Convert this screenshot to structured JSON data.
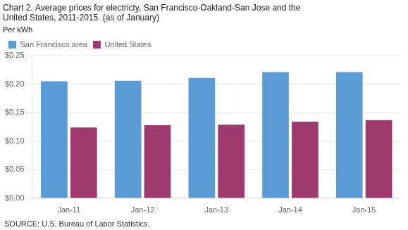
{
  "chart_data": {
    "type": "bar",
    "title": "Chart 2. Average prices for electricty, San Francisco-Oakland-San Jose and the\nUnited States, 2011-2015  (as of January)",
    "subtitle": "Per kWh",
    "source": "SOURCE: U.S. Bureau of Labor Statistics.",
    "categories": [
      "Jan-11",
      "Jan-12",
      "Jan-13",
      "Jan-14",
      "Jan-15"
    ],
    "series": [
      {
        "name": "San Francisco area",
        "color": "#5B9BD5",
        "values": [
          0.205,
          0.206,
          0.211,
          0.221,
          0.221
        ]
      },
      {
        "name": "United States",
        "color": "#9E3A6E",
        "values": [
          0.124,
          0.128,
          0.129,
          0.134,
          0.137
        ]
      }
    ],
    "ylim": [
      0.0,
      0.25
    ],
    "yticks": [
      {
        "value": 0.0,
        "label": "$0.00"
      },
      {
        "value": 0.05,
        "label": "$0.05"
      },
      {
        "value": 0.1,
        "label": "$0.10"
      },
      {
        "value": 0.15,
        "label": "$0.15"
      },
      {
        "value": 0.2,
        "label": "$0.20"
      },
      {
        "value": 0.25,
        "label": "$0.25"
      }
    ],
    "grid": true,
    "legend": "upper left"
  }
}
